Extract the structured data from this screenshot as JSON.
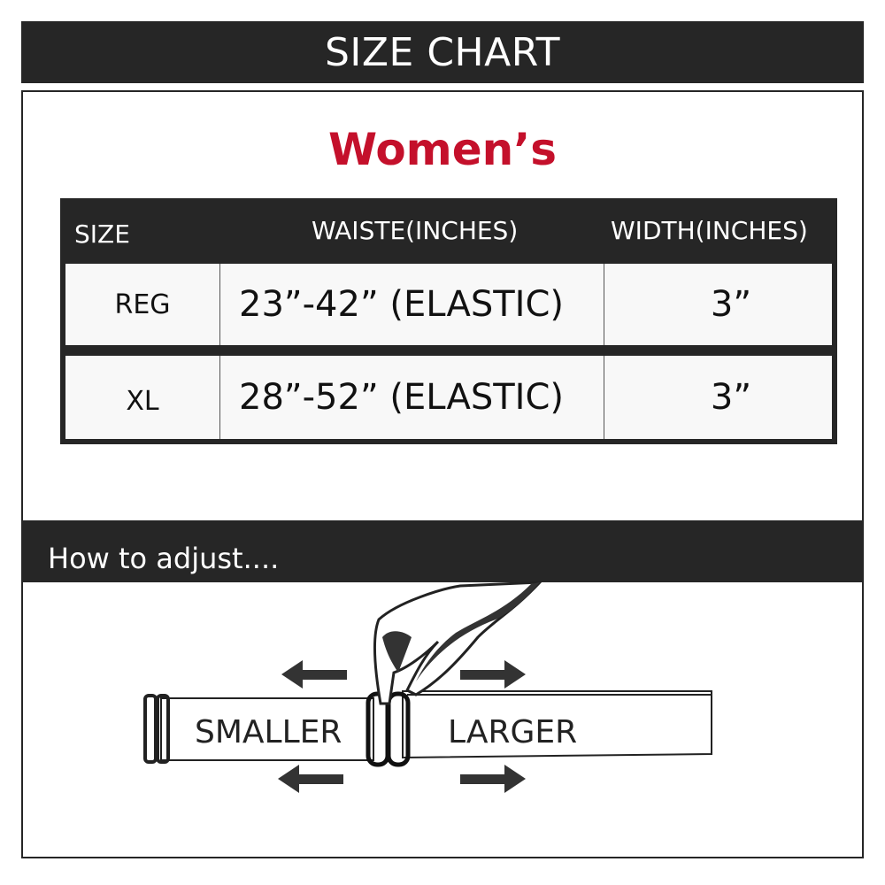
{
  "header": {
    "title": "SIZE CHART"
  },
  "section_title": "Women’s",
  "table": {
    "columns": [
      "SIZE",
      "WAISTE(INCHES)",
      "WIDTH(INCHES)"
    ],
    "rows": [
      {
        "size": "REG",
        "waist": "23”-42” (ELASTIC)",
        "width": "3”"
      },
      {
        "size": "XL",
        "waist": "28”-52” (ELASTIC)",
        "width": "3”"
      }
    ]
  },
  "adjust": {
    "heading": "How to adjust....",
    "smaller_label": "SMALLER",
    "larger_label": "LARGER"
  },
  "colors": {
    "dark": "#262626",
    "accent": "#c4102b"
  }
}
